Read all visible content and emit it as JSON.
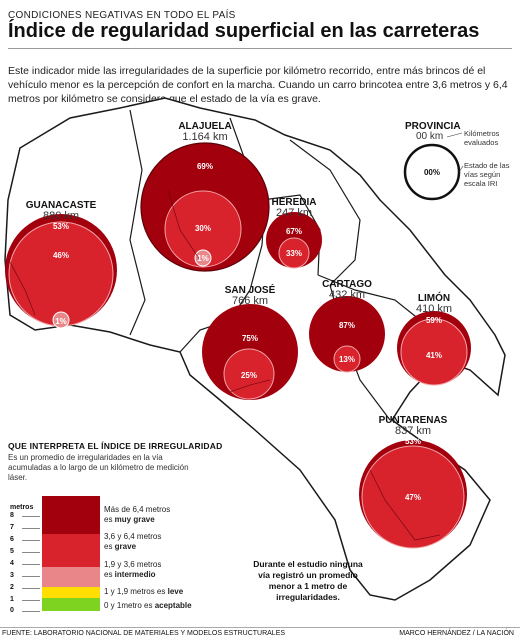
{
  "header": {
    "kicker": "CONDICIONES NEGATIVAS EN TODO EL PAÍS",
    "title": "Índice de regularidad superficial en las carreteras",
    "intro": "Este indicador mide las irregularidades de la superficie por kilómetro recorrido, entre más brincos dé el vehículo menor es la percepción de confort en la marcha. Cuando un carro brincotea entre 3,6 metros y 6,4 metros por kilómetro se considera que el estado de la vía es grave."
  },
  "colors": {
    "very_serious": "#a3000e",
    "serious": "#d8232d",
    "intermediate": "#e9868a",
    "light": "#ffde00",
    "acceptable": "#7ed321",
    "land": "#ffffff",
    "border": "#1a1a1a"
  },
  "legend": {
    "title": "PROVINCIA",
    "km": "00 km",
    "km_desc": "Kilómetros evaluados",
    "ring_value": "00%",
    "ring_desc": "Estado de las vías según escala IRI"
  },
  "provinces": [
    {
      "name": "ALAJUELA",
      "km": "1.164 km",
      "very_serious": "69%",
      "serious": "30%",
      "intermediate": "1%"
    },
    {
      "name": "GUANACASTE",
      "km": "880 km",
      "very_serious": "53%",
      "serious": "46%",
      "intermediate": "1%"
    },
    {
      "name": "HEREDIA",
      "km": "247 km",
      "very_serious": "67%",
      "serious": "33%"
    },
    {
      "name": "SAN JOSÉ",
      "km": "766 km",
      "very_serious": "75%",
      "serious": "25%"
    },
    {
      "name": "CARTAGO",
      "km": "432 km",
      "very_serious": "87%",
      "serious": "13%"
    },
    {
      "name": "LIMÓN",
      "km": "410 km",
      "very_serious": "59%",
      "serious": "41%"
    },
    {
      "name": "PUNTARENAS",
      "km": "837 km",
      "very_serious": "53%",
      "serious": "47%"
    }
  ],
  "explainer": {
    "title": "QUE INTERPRETA EL ÍNDICE DE IRREGULARIDAD",
    "desc": "Es un promedio de irregularidades en la vía acumuladas a lo largo de un kilómetro de medición láser."
  },
  "scale": {
    "header": "metros",
    "ticks": [
      "8",
      "7",
      "6",
      "5",
      "4",
      "3",
      "2",
      "1",
      "0"
    ],
    "bands": [
      {
        "pre": "Más de 6,4 metros es ",
        "bold": "muy grave"
      },
      {
        "pre": "3,6 y 6,4 metros es ",
        "bold": "grave"
      },
      {
        "pre": "1,9 y 3,6 metros es ",
        "bold": "intermedio"
      },
      {
        "pre": "1 y 1,9 metros es ",
        "bold": "leve"
      },
      {
        "pre": "0 y 1metro es ",
        "bold": "aceptable"
      }
    ]
  },
  "note": "Durante el estudio ninguna vía registró un promedio menor a 1 metro de irregularidades.",
  "footer": {
    "source": "FUENTE: LABORATORIO NACIONAL DE MATERIALES Y MODELOS ESTRUCTURALES",
    "credit": "MARCO HERNÁNDEZ / LA NACIÓN"
  }
}
